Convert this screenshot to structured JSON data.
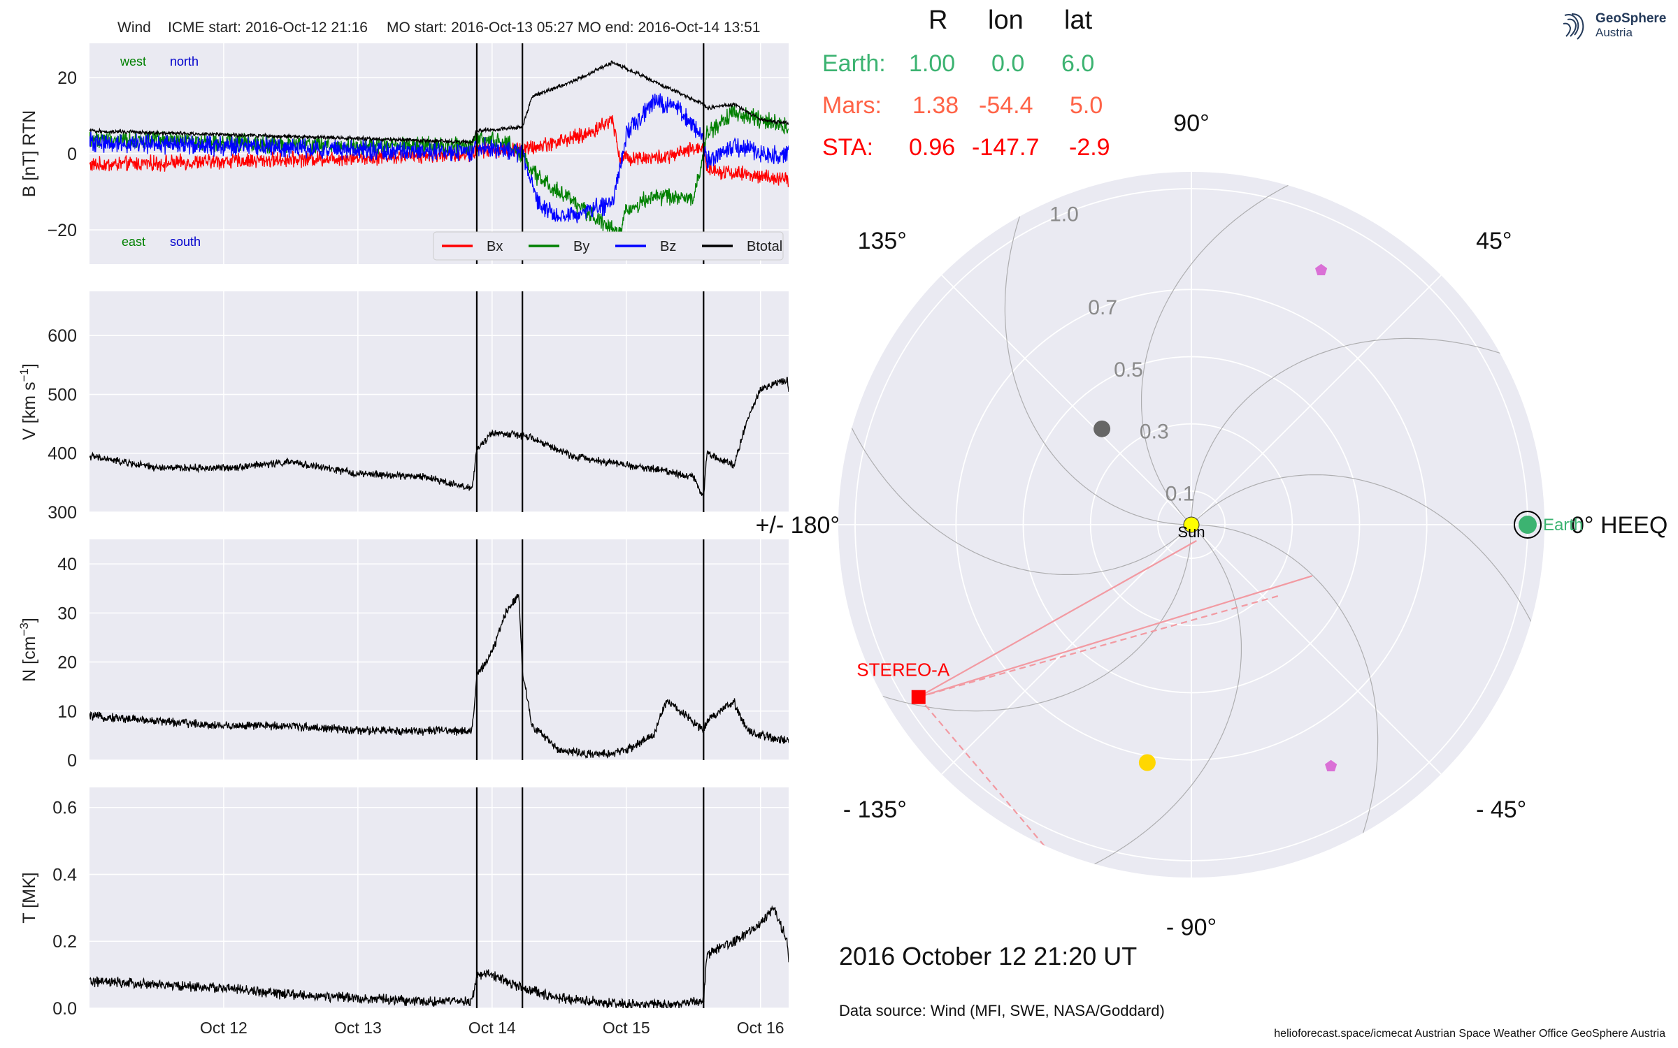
{
  "header": {
    "spacecraft": "Wind",
    "icme_start": "ICME start: 2016-Oct-12 21:16",
    "mo_start": "MO start: 2016-Oct-13 05:27",
    "mo_end": "MO end: 2016-Oct-14 13:51"
  },
  "positions": {
    "headers": [
      "R",
      "lon",
      "lat"
    ],
    "rows": [
      {
        "name": "Earth:",
        "R": "1.00",
        "lon": "0.0",
        "lat": "6.0",
        "color": "#3cb371"
      },
      {
        "name": "Mars:",
        "R": "1.38",
        "lon": "-54.4",
        "lat": "5.0",
        "color": "#ff6347"
      },
      {
        "name": "STA:",
        "R": "0.96",
        "lon": "-147.7",
        "lat": "-2.9",
        "color": "#ff0000"
      }
    ]
  },
  "logo": {
    "line1": "GeoSphere",
    "line2": "Austria"
  },
  "date_title": "2016 October 12  21:20 UT",
  "data_source": "Data source: Wind (MFI, SWE, NASA/Goddard)",
  "credits": "helioforecast.space/icmecat   Austrian Space Weather Office   GeoSphere Austria",
  "chart_data": [
    {
      "type": "line",
      "ylabel": "B [nT] RTN",
      "ylim": [
        -29,
        29
      ],
      "yticks": [
        20,
        0,
        -20
      ],
      "ytick_labels": [
        "20",
        "0",
        "−20"
      ],
      "xlim": [
        0,
        5.21
      ],
      "x_ticks": [
        1,
        2,
        3,
        4,
        5
      ],
      "x_tick_labels": [
        "Oct 12",
        "Oct 13",
        "Oct 14",
        "Oct 15",
        "Oct 16"
      ],
      "vlines": [
        2.886,
        3.226,
        4.576
      ],
      "corner_labels": [
        {
          "text": "west",
          "color": "#008000"
        },
        {
          "text": "north",
          "color": "#0000cc"
        },
        {
          "text": "east",
          "color": "#008000"
        },
        {
          "text": "south",
          "color": "#0000cc"
        }
      ],
      "legend": {
        "placement": "lower-right"
      },
      "series": [
        {
          "name": "Bx",
          "color": "#ff0000",
          "noise": 1.6,
          "x": [
            0,
            1,
            2,
            2.85,
            2.886,
            3.226,
            3.35,
            3.7,
            3.9,
            3.95,
            4.3,
            4.576,
            4.6,
            4.8,
            5.0,
            5.21
          ],
          "y": [
            -3,
            -2,
            -1,
            0,
            1,
            1,
            2,
            5,
            9,
            -1,
            -1,
            2,
            -4,
            -5,
            -6,
            -7
          ]
        },
        {
          "name": "By",
          "color": "#008000",
          "noise": 1.8,
          "x": [
            0,
            1,
            2,
            2.85,
            2.886,
            3.1,
            3.226,
            3.3,
            3.7,
            3.95,
            4.0,
            4.2,
            4.5,
            4.576,
            4.6,
            4.8,
            5.0,
            5.21
          ],
          "y": [
            4,
            3,
            2,
            2,
            4,
            3,
            0,
            -5,
            -15,
            -21,
            -15,
            -11,
            -12,
            0,
            5,
            11,
            9,
            7
          ]
        },
        {
          "name": "Bz",
          "color": "#0000ff",
          "noise": 2.0,
          "x": [
            0,
            1,
            2,
            2.85,
            2.886,
            3.226,
            3.35,
            3.5,
            3.9,
            4.0,
            4.2,
            4.4,
            4.576,
            4.6,
            4.8,
            5.0,
            5.21
          ],
          "y": [
            3,
            2,
            1,
            0,
            2,
            0,
            -13,
            -17,
            -13,
            5,
            14,
            12,
            3,
            -2,
            2,
            0,
            0
          ]
        },
        {
          "name": "Btotal",
          "color": "#000000",
          "noise": 0.4,
          "x": [
            0,
            1,
            2,
            2.85,
            2.886,
            3.226,
            3.3,
            3.6,
            3.9,
            4.2,
            4.576,
            4.6,
            4.8,
            5.0,
            5.21
          ],
          "y": [
            6,
            5,
            4,
            3,
            6,
            7,
            15,
            19,
            24,
            19,
            13,
            12,
            13,
            9,
            8
          ]
        }
      ]
    },
    {
      "type": "line",
      "ylabel": "V [km s$^{-1}$]",
      "ylim": [
        300,
        675
      ],
      "yticks": [
        300,
        400,
        500,
        600
      ],
      "ytick_labels": [
        "300",
        "400",
        "500",
        "600"
      ],
      "xlim": [
        0,
        5.21
      ],
      "x_ticks": [
        1,
        2,
        3,
        4,
        5
      ],
      "vlines": [
        2.886,
        3.226,
        4.576
      ],
      "series": [
        {
          "name": "V",
          "color": "#000000",
          "noise": 5,
          "x": [
            0,
            0.5,
            1,
            1.5,
            2,
            2.5,
            2.85,
            2.886,
            3.0,
            3.226,
            3.3,
            3.6,
            4.0,
            4.3,
            4.5,
            4.576,
            4.6,
            4.8,
            4.9,
            5.0,
            5.2,
            5.21
          ],
          "y": [
            395,
            375,
            375,
            385,
            365,
            360,
            340,
            405,
            435,
            430,
            425,
            395,
            380,
            370,
            360,
            325,
            400,
            380,
            455,
            510,
            525,
            500
          ]
        }
      ]
    },
    {
      "type": "line",
      "ylabel": "N [cm$^{-3}$]",
      "ylim": [
        0,
        45
      ],
      "yticks": [
        0,
        10,
        20,
        30,
        40
      ],
      "ytick_labels": [
        "0",
        "10",
        "20",
        "30",
        "40"
      ],
      "xlim": [
        0,
        5.21
      ],
      "x_ticks": [
        1,
        2,
        3,
        4,
        5
      ],
      "vlines": [
        2.886,
        3.226,
        4.576
      ],
      "series": [
        {
          "name": "N",
          "color": "#000000",
          "noise": 0.7,
          "x": [
            0,
            0.5,
            1,
            1.5,
            2,
            2.5,
            2.85,
            2.886,
            3.0,
            3.1,
            3.2,
            3.226,
            3.3,
            3.5,
            3.8,
            4.0,
            4.2,
            4.3,
            4.4,
            4.5,
            4.576,
            4.6,
            4.8,
            4.9,
            5.0,
            5.2,
            5.21
          ],
          "y": [
            9,
            8,
            7,
            7,
            6,
            6,
            6,
            17,
            22,
            30,
            34,
            18,
            7,
            2,
            1,
            2,
            5,
            12,
            10,
            8,
            6,
            8,
            12,
            6,
            5,
            4,
            4
          ]
        }
      ]
    },
    {
      "type": "line",
      "ylabel": "T [MK]",
      "ylim": [
        0,
        0.66
      ],
      "yticks": [
        0.0,
        0.2,
        0.4,
        0.6
      ],
      "ytick_labels": [
        "0.0",
        "0.2",
        "0.4",
        "0.6"
      ],
      "xlim": [
        0,
        5.21
      ],
      "x_ticks": [
        1,
        2,
        3,
        4,
        5
      ],
      "x_tick_labels": [
        "Oct 12",
        "Oct 13",
        "Oct 14",
        "Oct 15",
        "Oct 16"
      ],
      "vlines": [
        2.886,
        3.226,
        4.576
      ],
      "series": [
        {
          "name": "T",
          "color": "#000000",
          "noise": 0.012,
          "x": [
            0,
            0.5,
            1,
            1.5,
            2,
            2.5,
            2.85,
            2.886,
            3.0,
            3.226,
            3.5,
            4.0,
            4.3,
            4.576,
            4.6,
            4.8,
            5.0,
            5.1,
            5.2,
            5.21
          ],
          "y": [
            0.08,
            0.07,
            0.06,
            0.04,
            0.03,
            0.02,
            0.02,
            0.1,
            0.1,
            0.06,
            0.03,
            0.01,
            0.01,
            0.02,
            0.16,
            0.2,
            0.25,
            0.3,
            0.2,
            0.14
          ]
        }
      ]
    },
    {
      "type": "scatter",
      "subtype": "polar",
      "rmax": 1.05,
      "r_ticks": [
        0.1,
        0.3,
        0.5,
        0.7,
        1.0
      ],
      "angle_labels": [
        {
          "deg": 0,
          "text": "0° HEEQ"
        },
        {
          "deg": 45,
          "text": "45°"
        },
        {
          "deg": 90,
          "text": "90°"
        },
        {
          "deg": 135,
          "text": "135°"
        },
        {
          "deg": 180,
          "text": "+/- 180°"
        },
        {
          "deg": -135,
          "text": "- 135°"
        },
        {
          "deg": -90,
          "text": "- 90°"
        },
        {
          "deg": -45,
          "text": "- 45°"
        }
      ],
      "bodies": [
        {
          "name": "Sun",
          "r": 0.0,
          "lon": 0.0,
          "color": "#ffff00",
          "marker": "circle",
          "label": "Sun",
          "label_color": "#000000"
        },
        {
          "name": "Earth",
          "r": 1.0,
          "lon": 0.0,
          "color": "#3cb371",
          "marker": "circle-ring",
          "label": "Earth",
          "label_color": "#3cb371"
        },
        {
          "name": "STEREO-A",
          "r": 0.96,
          "lon": -147.7,
          "color": "#ff0000",
          "marker": "square",
          "label": "STEREO-A",
          "label_color": "#ff0000"
        },
        {
          "name": "Mercury",
          "r": 0.39,
          "lon": 133.0,
          "color": "#666666",
          "marker": "circle",
          "label": ""
        },
        {
          "name": "Venus",
          "r": 0.72,
          "lon": -100.5,
          "color": "#ffd700",
          "marker": "circle",
          "label": ""
        },
        {
          "name": "PSP-1",
          "r": 0.85,
          "lon": 63.0,
          "color": "#da70d6",
          "marker": "pentagon",
          "label": ""
        },
        {
          "name": "PSP-2",
          "r": 0.83,
          "lon": -60.0,
          "color": "#da70d6",
          "marker": "pentagon",
          "label": ""
        }
      ],
      "sta_lines": [
        {
          "to_r": 0.05,
          "to_lon": -72.0,
          "style": "solid"
        },
        {
          "to_r": 0.39,
          "to_lon": -23.0,
          "style": "solid"
        },
        {
          "to_r": 0.34,
          "to_lon": -38.0,
          "style": "dashed"
        },
        {
          "to_r": 1.08,
          "to_lon": -111.5,
          "style": "dashed"
        }
      ],
      "spirals": [
        0,
        45,
        90,
        135,
        180,
        225,
        270,
        315
      ]
    }
  ]
}
